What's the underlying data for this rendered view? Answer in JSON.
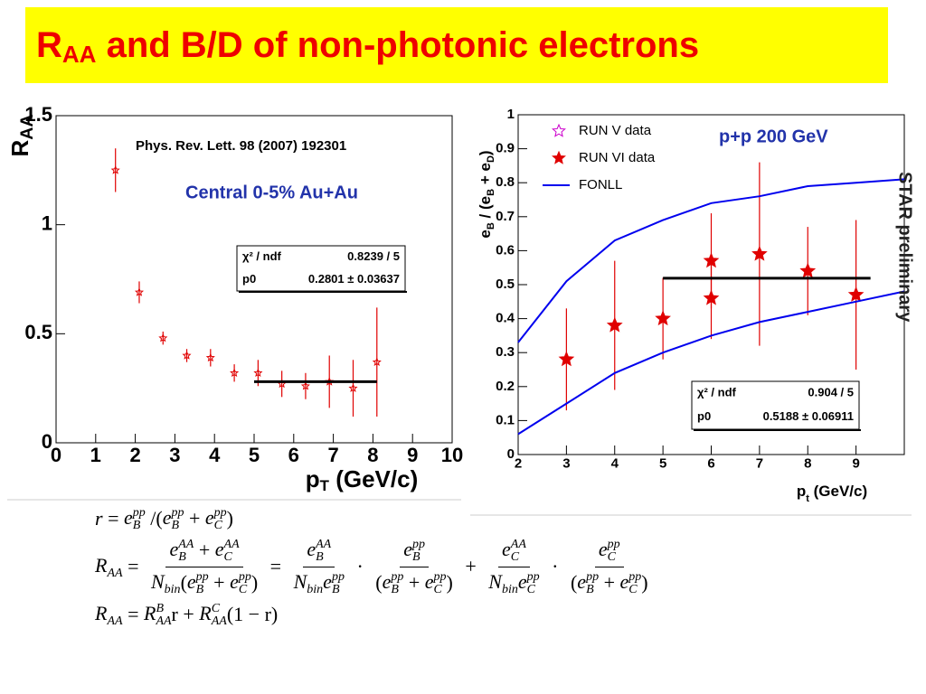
{
  "slide": {
    "title": {
      "main": "R",
      "sub": "AA",
      "rest": " and B/D of non-photonic electrons"
    }
  },
  "chart_data": [
    {
      "type": "scatter",
      "y_label": {
        "main": "R",
        "sub": "AA"
      },
      "x_label": {
        "main": "p",
        "sub": "T",
        "rest": " (GeV/c)"
      },
      "xlim": [
        0,
        10
      ],
      "xticks": [
        0,
        1,
        2,
        3,
        4,
        5,
        6,
        7,
        8,
        9,
        10
      ],
      "ylim": [
        0,
        1.5
      ],
      "yticks": [
        0,
        0.5,
        1,
        1.5
      ],
      "series": [
        {
          "marker": "open-star",
          "color": "#e00000",
          "x": [
            1.5,
            2.1,
            2.7,
            3.3,
            3.9,
            4.5,
            5.1,
            5.7,
            6.3,
            6.9,
            7.5,
            8.1
          ],
          "values": [
            1.25,
            0.69,
            0.48,
            0.4,
            0.39,
            0.32,
            0.32,
            0.27,
            0.26,
            0.28,
            0.25,
            0.37
          ],
          "errors": [
            0.1,
            0.05,
            0.03,
            0.03,
            0.04,
            0.04,
            0.06,
            0.06,
            0.06,
            0.12,
            0.13,
            0.25
          ]
        }
      ],
      "fit": {
        "p0": 0.2801,
        "xrange": [
          5,
          8.1
        ],
        "color": "#000000"
      },
      "stats": [
        [
          "χ² / ndf",
          "0.8239 / 5"
        ],
        [
          "p0",
          "0.2801 ± 0.03637"
        ]
      ],
      "annotations": [
        "Phys. Rev. Lett. 98 (2007) 192301",
        "Central 0-5% Au+Au"
      ]
    },
    {
      "type": "scatter",
      "y_label": [
        "e",
        "B",
        " / (e",
        "B",
        " + e",
        "D",
        ")"
      ],
      "x_label": {
        "main": "p",
        "sub": "t",
        "rest": " (GeV/c)"
      },
      "xlim": [
        2,
        10
      ],
      "xticks": [
        2,
        3,
        4,
        5,
        6,
        7,
        8,
        9
      ],
      "ylim": [
        0,
        1
      ],
      "yticks": [
        0,
        0.1,
        0.2,
        0.3,
        0.4,
        0.5,
        0.6,
        0.7,
        0.8,
        0.9,
        1
      ],
      "legend": "upper left",
      "series": [
        {
          "name": "RUN V data",
          "marker": "open-star",
          "color": "#cc00cc",
          "x": [],
          "values": [],
          "errors": []
        },
        {
          "name": "RUN VI data",
          "marker": "star",
          "color": "#e00000",
          "x": [
            3,
            4,
            5,
            6,
            6,
            7,
            8,
            9
          ],
          "values": [
            0.28,
            0.38,
            0.4,
            0.57,
            0.46,
            0.59,
            0.54,
            0.47
          ],
          "errors": [
            0.15,
            0.19,
            0.12,
            0.14,
            0.12,
            0.27,
            0.13,
            0.22
          ]
        },
        {
          "name": "FONLL",
          "marker": "line",
          "color": "#0000ee",
          "x": [
            2,
            3,
            4,
            5,
            6,
            7,
            8,
            9,
            10
          ],
          "upper": [
            0.33,
            0.51,
            0.63,
            0.69,
            0.74,
            0.76,
            0.79,
            0.8,
            0.81
          ],
          "lower": [
            0.06,
            0.15,
            0.24,
            0.3,
            0.35,
            0.39,
            0.42,
            0.45,
            0.48
          ]
        }
      ],
      "fit": {
        "p0": 0.5188,
        "xrange": [
          5,
          9.3
        ],
        "color": "#000000"
      },
      "stats": [
        [
          "χ² / ndf",
          "0.904 / 5"
        ],
        [
          "p0",
          "0.5188 ± 0.06911"
        ]
      ],
      "annotations": [
        "p+p 200 GeV",
        "STAR preliminary"
      ]
    }
  ],
  "equations": [
    [
      {
        "b": "r"
      },
      {
        "t": " = "
      },
      {
        "b": "e",
        "sup": "pp",
        "sub": "B"
      },
      {
        "t": " /("
      },
      {
        "b": "e",
        "sup": "pp",
        "sub": "B"
      },
      {
        "t": " + "
      },
      {
        "b": "e",
        "sup": "pp",
        "sub": "C"
      },
      {
        "t": ")"
      }
    ],
    [
      {
        "b": "R",
        "sub": "AA"
      },
      {
        "t": " = "
      },
      {
        "num": [
          {
            "b": "e",
            "sup": "AA",
            "sub": "B"
          },
          {
            "t": " + "
          },
          {
            "b": "e",
            "sup": "AA",
            "sub": "C"
          }
        ],
        "den": [
          {
            "b": "N",
            "sub": "bin"
          },
          {
            "t": "("
          },
          {
            "b": "e",
            "sup": "pp",
            "sub": "B"
          },
          {
            "t": " + "
          },
          {
            "b": "e",
            "sup": "pp",
            "sub": "C"
          },
          {
            "t": ")"
          }
        ]
      },
      {
        "t": " = "
      },
      {
        "num": [
          {
            "b": "e",
            "sup": "AA",
            "sub": "B"
          }
        ],
        "den": [
          {
            "b": "N",
            "sub": "bin"
          },
          {
            "b": "e",
            "sup": "pp",
            "sub": "B"
          }
        ]
      },
      {
        "t": " · "
      },
      {
        "num": [
          {
            "b": "e",
            "sup": "pp",
            "sub": "B"
          }
        ],
        "den": [
          {
            "t": "("
          },
          {
            "b": "e",
            "sup": "pp",
            "sub": "B"
          },
          {
            "t": " + "
          },
          {
            "b": "e",
            "sup": "pp",
            "sub": "C"
          },
          {
            "t": ")"
          }
        ]
      },
      {
        "t": " + "
      },
      {
        "num": [
          {
            "b": "e",
            "sup": "AA",
            "sub": "C"
          }
        ],
        "den": [
          {
            "b": "N",
            "sub": "bin"
          },
          {
            "b": "e",
            "sup": "pp",
            "sub": "C"
          }
        ]
      },
      {
        "t": " · "
      },
      {
        "num": [
          {
            "b": "e",
            "sup": "pp",
            "sub": "C"
          }
        ],
        "den": [
          {
            "t": "("
          },
          {
            "b": "e",
            "sup": "pp",
            "sub": "B"
          },
          {
            "t": " + "
          },
          {
            "b": "e",
            "sup": "pp",
            "sub": "C"
          },
          {
            "t": ")"
          }
        ]
      }
    ],
    [
      {
        "b": "R",
        "sub": "AA"
      },
      {
        "t": " = "
      },
      {
        "b": "R",
        "sup": "B",
        "sub": "AA"
      },
      {
        "t": "r + "
      },
      {
        "b": "R",
        "sup": "C",
        "sub": "AA"
      },
      {
        "t": "(1 − r)"
      }
    ]
  ]
}
